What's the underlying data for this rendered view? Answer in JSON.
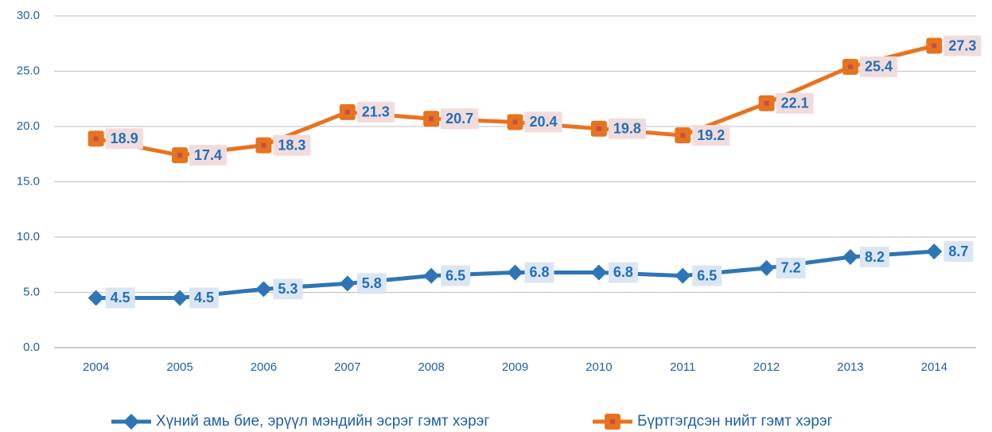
{
  "chart_data": {
    "type": "line",
    "categories": [
      "2004",
      "2005",
      "2006",
      "2007",
      "2008",
      "2009",
      "2010",
      "2011",
      "2012",
      "2013",
      "2014"
    ],
    "series": [
      {
        "name": "Хүний амь бие, эрүүл мэндийн эсрэг гэмт хэрэг",
        "color": "#2e75b6",
        "label_bg": "#dce6f2",
        "marker": "diamond",
        "values": [
          4.5,
          4.5,
          5.3,
          5.8,
          6.5,
          6.8,
          6.8,
          6.5,
          7.2,
          8.2,
          8.7
        ]
      },
      {
        "name": "Бүртгэгдсэн нийт гэмт хэрэг",
        "color": "#e8731f",
        "label_bg": "#f2dcdb",
        "marker": "square",
        "values": [
          18.9,
          17.4,
          18.3,
          21.3,
          20.7,
          20.4,
          19.8,
          19.2,
          22.1,
          25.4,
          27.3
        ]
      }
    ],
    "ylim": [
      0,
      30
    ],
    "yticks": [
      {
        "value": 0,
        "label": "0.0"
      },
      {
        "value": 5,
        "label": "5.0"
      },
      {
        "value": 10,
        "label": "10.0"
      },
      {
        "value": 15,
        "label": "15.0"
      },
      {
        "value": 20,
        "label": "20.0"
      },
      {
        "value": 25,
        "label": "25.0"
      },
      {
        "value": 30,
        "label": "30.0"
      }
    ],
    "grid": true,
    "legend": "bottom"
  }
}
